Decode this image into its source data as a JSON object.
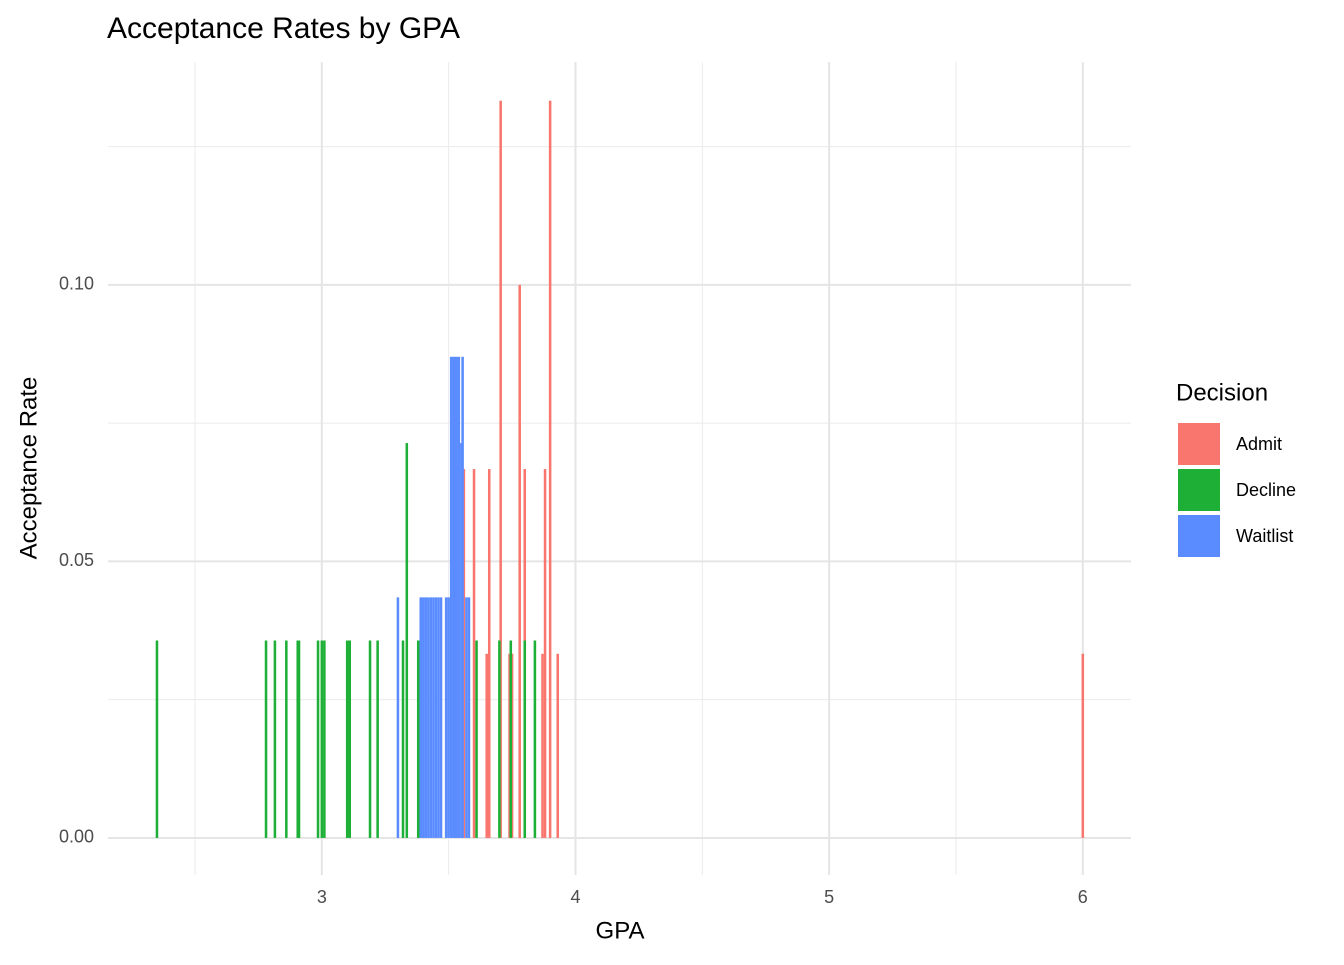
{
  "chart_data": {
    "type": "bar",
    "title": "Acceptance Rates by GPA",
    "x_label": "GPA",
    "y_label": "Acceptance Rate",
    "legend_title": "Decision",
    "legend_position": "right",
    "grid": true,
    "xlim": [
      2.157,
      6.19
    ],
    "ylim": [
      -0.0067,
      0.1403
    ],
    "xticks": [
      3,
      4,
      5,
      6
    ],
    "xminor": [
      2.5,
      3.5,
      4.5,
      5.5
    ],
    "yticks": [
      {
        "value": 0,
        "label": "0.00"
      },
      {
        "value": 0.05,
        "label": "0.05"
      },
      {
        "value": 0.1,
        "label": "0.10"
      }
    ],
    "yminor": [
      0.025,
      0.075,
      0.125
    ],
    "bar_width": 0.01,
    "series": [
      {
        "name": "Admit",
        "color": "#f8766d",
        "x": [
          3.53,
          3.56,
          3.6,
          3.65,
          3.66,
          3.705,
          3.74,
          3.75,
          3.78,
          3.8,
          3.87,
          3.88,
          3.9,
          3.93,
          6.0
        ],
        "values": [
          0.0333,
          0.0667,
          0.0667,
          0.0333,
          0.0667,
          0.1333,
          0.0333,
          0.0333,
          0.1,
          0.0667,
          0.0333,
          0.0667,
          0.1333,
          0.0333,
          0.0333
        ]
      },
      {
        "name": "Decline",
        "color": "#1eb036",
        "x": [
          2.35,
          2.78,
          2.815,
          2.86,
          2.905,
          2.91,
          2.985,
          3.0,
          3.01,
          3.1,
          3.11,
          3.19,
          3.22,
          3.32,
          3.335,
          3.38,
          3.61,
          3.7,
          3.745,
          3.8,
          3.84
        ],
        "values": [
          0.0357,
          0.0357,
          0.0357,
          0.0357,
          0.0357,
          0.0357,
          0.0357,
          0.0357,
          0.0357,
          0.0357,
          0.0357,
          0.0357,
          0.0357,
          0.0357,
          0.0714,
          0.0357,
          0.0357,
          0.0357,
          0.0357,
          0.0357,
          0.0357
        ]
      },
      {
        "name": "Waitlist",
        "color": "#5a8cff",
        "x": [
          3.3,
          3.39,
          3.4,
          3.41,
          3.42,
          3.43,
          3.44,
          3.45,
          3.46,
          3.47,
          3.49,
          3.5,
          3.51,
          3.52,
          3.53,
          3.54,
          3.55,
          3.555,
          3.57,
          3.58
        ],
        "values": [
          0.0435,
          0.0435,
          0.0435,
          0.0435,
          0.0435,
          0.0435,
          0.0435,
          0.0435,
          0.0435,
          0.0435,
          0.0435,
          0.0435,
          0.087,
          0.087,
          0.087,
          0.087,
          0.0714,
          0.087,
          0.0435,
          0.0435
        ]
      }
    ]
  }
}
